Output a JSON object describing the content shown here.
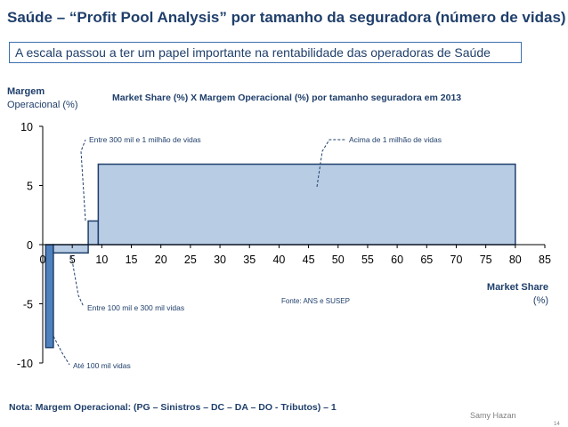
{
  "header": {
    "title": "Saúde – “Profit Pool Analysis” por tamanho da seguradora (número de vidas)",
    "subtitle": "A escala passou a ter um papel importante na rentabilidade das operadoras de Saúde"
  },
  "footer": {
    "note": "Nota:  Margem Operacional: (PG – Sinistros – DC – DA – DO - Tributos)  – 1",
    "author": "Samy Hazan",
    "page_number": "14"
  },
  "chart_data": {
    "type": "bar",
    "variant": "variable-width (Marimekko) – bar width = market share, height = operating margin",
    "title": "Market Share (%)  X  Margem Operacional (%) por tamanho seguradora em 2013",
    "ylabel": "Margem",
    "ylabel_unit": "Operacional (%)",
    "xlabel": "Market Share",
    "xlabel_unit": "(%)",
    "source": "Fonte:  ANS e SUSEP",
    "xlim": [
      0,
      85
    ],
    "ylim": [
      -10,
      10
    ],
    "x_ticks": [
      "0",
      "5",
      "10",
      "15",
      "20",
      "25",
      "30",
      "35",
      "40",
      "45",
      "50",
      "55",
      "60",
      "65",
      "70",
      "75",
      "80",
      "85"
    ],
    "y_ticks": [
      "10",
      "5",
      "0",
      "-5",
      "-10"
    ],
    "grid": false,
    "colors": {
      "bar_fill": "#b8cce4",
      "bar_fill_dark": "#4f81bd",
      "bar_stroke": "#1f3f6b",
      "text": "#1f3f6b"
    },
    "segments": [
      {
        "label": "Até 100 mil vidas",
        "x_start": 0.5,
        "x_end": 1.8,
        "margin": -8.7,
        "style": "dark"
      },
      {
        "label": "Entre 100 mil e 300 mil vidas",
        "x_start": 1.8,
        "x_end": 7.7,
        "margin": -0.7,
        "style": "light"
      },
      {
        "label": "Entre 300 mil e 1 milhão de vidas",
        "x_start": 7.7,
        "x_end": 9.4,
        "margin": 2.0,
        "style": "light"
      },
      {
        "label": "Acima de 1 milhão de vidas",
        "x_start": 9.4,
        "x_end": 80.0,
        "margin": 6.8,
        "style": "light"
      }
    ]
  }
}
